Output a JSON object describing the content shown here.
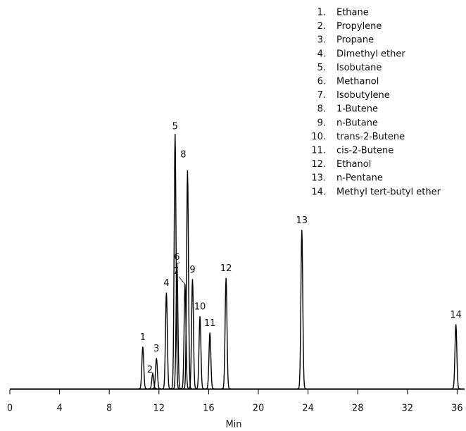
{
  "chart_data": {
    "type": "chromatogram",
    "x_label": "Min",
    "xlim": [
      0,
      36.6
    ],
    "xticks": [
      0,
      4,
      8,
      12,
      16,
      20,
      24,
      28,
      32,
      36
    ],
    "ylim": [
      0,
      100
    ],
    "color": "#000000",
    "peaks": [
      {
        "label": "1",
        "time": 10.7,
        "height": 16.5
      },
      {
        "label": "2",
        "time": 11.5,
        "height": 6
      },
      {
        "label": "3",
        "time": 11.8,
        "height": 12
      },
      {
        "label": "4",
        "time": 12.6,
        "height": 37.7
      },
      {
        "label": "5",
        "time": 13.3,
        "height": 100
      },
      {
        "label": "6",
        "time": 13.45,
        "height": 49
      },
      {
        "label": "7",
        "time": 14.1,
        "height": 41
      },
      {
        "label": "8",
        "time": 14.3,
        "height": 85.7
      },
      {
        "label": "9",
        "time": 14.7,
        "height": 43
      },
      {
        "label": "10",
        "time": 15.3,
        "height": 28.4
      },
      {
        "label": "11",
        "time": 16.1,
        "height": 22
      },
      {
        "label": "12",
        "time": 17.4,
        "height": 43.5
      },
      {
        "label": "13",
        "time": 23.5,
        "height": 62.3
      },
      {
        "label": "14",
        "time": 35.9,
        "height": 25.3
      }
    ],
    "legend": [
      {
        "number": "1.",
        "name": "Ethane"
      },
      {
        "number": "2.",
        "name": "Propylene"
      },
      {
        "number": "3.",
        "name": "Propane"
      },
      {
        "number": "4.",
        "name": "Dimethyl ether"
      },
      {
        "number": "5.",
        "name": "Isobutane"
      },
      {
        "number": "6.",
        "name": "Methanol"
      },
      {
        "number": "7.",
        "name": "Isobutylene"
      },
      {
        "number": "8.",
        "name": "1-Butene"
      },
      {
        "number": "9.",
        "name": "n-Butane"
      },
      {
        "number": "10.",
        "name": "trans-2-Butene"
      },
      {
        "number": "11.",
        "name": "cis-2-Butene"
      },
      {
        "number": "12.",
        "name": "Ethanol"
      },
      {
        "number": "13.",
        "name": "n-Pentane"
      },
      {
        "number": "14.",
        "name": "Methyl tert-butyl ether"
      }
    ]
  }
}
